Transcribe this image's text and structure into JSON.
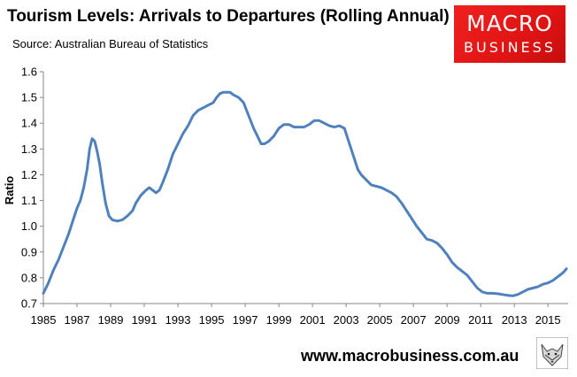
{
  "header": {
    "title": "Tourism Levels: Arrivals to Departures (Rolling Annual)",
    "subtitle": "Source: Australian Bureau of Statistics"
  },
  "logo": {
    "line1": "MACRO",
    "line2": "BUSINESS"
  },
  "footer": {
    "url": "www.macrobusiness.com.au"
  },
  "colors": {
    "line": "#4f81bd",
    "logo_bg": "#e31b1b"
  },
  "chart_data": {
    "type": "line",
    "title": "Tourism Levels: Arrivals to Departures (Rolling Annual)",
    "subtitle": "Source: Australian Bureau of Statistics",
    "xlabel": "",
    "ylabel": "Ratio",
    "xlim": [
      1985,
      2016.2
    ],
    "ylim": [
      0.7,
      1.6
    ],
    "x_ticks": [
      1985,
      1987,
      1989,
      1991,
      1993,
      1995,
      1997,
      1999,
      2001,
      2003,
      2005,
      2007,
      2009,
      2011,
      2013,
      2015
    ],
    "x_tick_labels": [
      "1985",
      "1987",
      "1989",
      "1991",
      "1993",
      "1995",
      "1997",
      "1999",
      "2001",
      "2003",
      "2005",
      "2007",
      "2009",
      "2011",
      "2013",
      "2015"
    ],
    "y_ticks": [
      0.7,
      0.8,
      0.9,
      1.0,
      1.1,
      1.2,
      1.3,
      1.4,
      1.5,
      1.6
    ],
    "y_tick_labels": [
      "0.7",
      "0.8",
      "0.9",
      "1.0",
      "1.1",
      "1.2",
      "1.3",
      "1.4",
      "1.5",
      "1.6"
    ],
    "grid": false,
    "legend": "none",
    "series": [
      {
        "name": "Arrivals to Departures",
        "x": [
          1985.0,
          1985.3,
          1985.6,
          1985.9,
          1986.2,
          1986.5,
          1986.8,
          1987.0,
          1987.2,
          1987.4,
          1987.6,
          1987.75,
          1987.9,
          1988.05,
          1988.2,
          1988.35,
          1988.5,
          1988.7,
          1988.9,
          1989.1,
          1989.4,
          1989.7,
          1990.0,
          1990.3,
          1990.5,
          1990.8,
          1991.1,
          1991.3,
          1991.5,
          1991.7,
          1991.9,
          1992.1,
          1992.4,
          1992.7,
          1993.0,
          1993.3,
          1993.6,
          1993.9,
          1994.2,
          1994.5,
          1994.8,
          1995.1,
          1995.3,
          1995.5,
          1995.7,
          1995.9,
          1996.1,
          1996.3,
          1996.6,
          1996.9,
          1997.2,
          1997.5,
          1997.8,
          1997.95,
          1998.15,
          1998.4,
          1998.7,
          1999.0,
          1999.3,
          1999.6,
          1999.9,
          2000.2,
          2000.5,
          2000.8,
          2001.1,
          2001.4,
          2001.7,
          2002.0,
          2002.3,
          2002.6,
          2002.9,
          2003.1,
          2003.3,
          2003.5,
          2003.7,
          2003.9,
          2004.2,
          2004.5,
          2004.8,
          2005.1,
          2005.4,
          2005.7,
          2006.0,
          2006.3,
          2006.6,
          2006.9,
          2007.2,
          2007.5,
          2007.8,
          2008.1,
          2008.4,
          2008.7,
          2009.0,
          2009.3,
          2009.6,
          2009.9,
          2010.2,
          2010.5,
          2010.8,
          2011.1,
          2011.4,
          2011.7,
          2012.0,
          2012.3,
          2012.6,
          2012.9,
          2013.2,
          2013.5,
          2013.8,
          2014.1,
          2014.4,
          2014.7,
          2015.0,
          2015.3,
          2015.6,
          2015.9,
          2016.1
        ],
        "y": [
          0.74,
          0.78,
          0.83,
          0.87,
          0.92,
          0.97,
          1.03,
          1.07,
          1.1,
          1.15,
          1.22,
          1.3,
          1.34,
          1.33,
          1.29,
          1.24,
          1.17,
          1.09,
          1.04,
          1.025,
          1.02,
          1.025,
          1.04,
          1.06,
          1.09,
          1.12,
          1.14,
          1.15,
          1.14,
          1.13,
          1.14,
          1.17,
          1.22,
          1.28,
          1.32,
          1.36,
          1.39,
          1.43,
          1.45,
          1.46,
          1.47,
          1.48,
          1.5,
          1.515,
          1.52,
          1.52,
          1.52,
          1.51,
          1.5,
          1.48,
          1.43,
          1.38,
          1.34,
          1.32,
          1.32,
          1.33,
          1.35,
          1.38,
          1.395,
          1.395,
          1.385,
          1.385,
          1.385,
          1.395,
          1.41,
          1.41,
          1.4,
          1.39,
          1.385,
          1.39,
          1.38,
          1.34,
          1.3,
          1.26,
          1.22,
          1.2,
          1.18,
          1.16,
          1.155,
          1.15,
          1.14,
          1.13,
          1.115,
          1.09,
          1.06,
          1.03,
          1.0,
          0.975,
          0.95,
          0.945,
          0.935,
          0.915,
          0.89,
          0.86,
          0.84,
          0.825,
          0.81,
          0.785,
          0.76,
          0.745,
          0.74,
          0.74,
          0.738,
          0.735,
          0.732,
          0.73,
          0.735,
          0.745,
          0.755,
          0.76,
          0.765,
          0.775,
          0.78,
          0.79,
          0.805,
          0.82,
          0.835
        ]
      }
    ]
  }
}
